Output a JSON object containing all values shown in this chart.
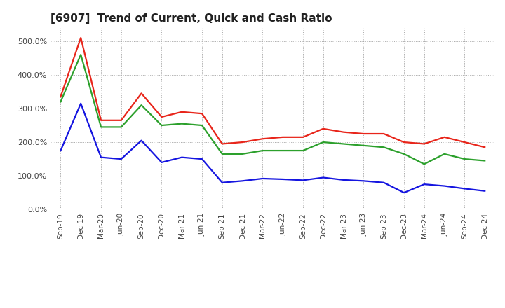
{
  "title": "[6907]  Trend of Current, Quick and Cash Ratio",
  "labels": [
    "Sep-19",
    "Dec-19",
    "Mar-20",
    "Jun-20",
    "Sep-20",
    "Dec-20",
    "Mar-21",
    "Jun-21",
    "Sep-21",
    "Dec-21",
    "Mar-22",
    "Jun-22",
    "Sep-22",
    "Dec-22",
    "Mar-23",
    "Jun-23",
    "Sep-23",
    "Dec-23",
    "Mar-24",
    "Jun-24",
    "Sep-24",
    "Dec-24"
  ],
  "current_ratio": [
    335,
    510,
    265,
    265,
    345,
    275,
    290,
    285,
    195,
    200,
    210,
    215,
    215,
    240,
    230,
    225,
    225,
    200,
    195,
    215,
    200,
    185
  ],
  "quick_ratio": [
    320,
    460,
    245,
    245,
    310,
    250,
    255,
    250,
    165,
    165,
    175,
    175,
    175,
    200,
    195,
    190,
    185,
    165,
    135,
    165,
    150,
    145
  ],
  "cash_ratio": [
    175,
    315,
    155,
    150,
    205,
    140,
    155,
    150,
    80,
    85,
    92,
    90,
    87,
    95,
    88,
    85,
    80,
    50,
    75,
    70,
    62,
    55
  ],
  "current_color": "#e8251a",
  "quick_color": "#2ca02c",
  "cash_color": "#1515e0",
  "ylim": [
    0,
    540
  ],
  "yticks": [
    0,
    100,
    200,
    300,
    400,
    500
  ],
  "background_color": "#ffffff",
  "plot_bg_color": "#ffffff",
  "grid_color": "#aaaaaa",
  "linewidth": 1.6
}
